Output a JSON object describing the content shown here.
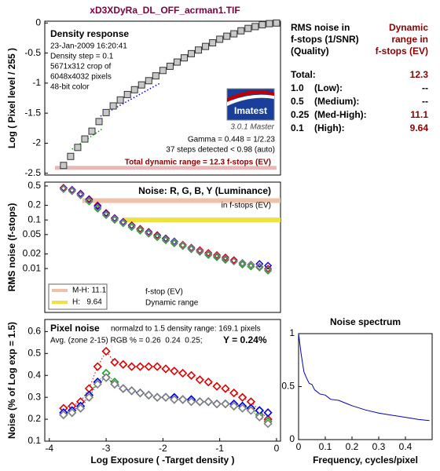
{
  "title": "xD3XDyRa_DL_OFF_acrman1.TIF",
  "table": {
    "header_left": [
      "RMS noise in",
      "f-stops (1/SNR)",
      "(Quality)"
    ],
    "header_right": [
      "Dynamic",
      "range in",
      "f-stops (EV)"
    ],
    "total": {
      "label": "Total:",
      "value": 12.3
    },
    "rows": [
      {
        "level": "1.0",
        "quality": "(Low):",
        "value": "--"
      },
      {
        "level": "0.5",
        "quality": "(Medium):",
        "value": "--"
      },
      {
        "level": "0.25",
        "quality": "(Med-High):",
        "value": 11.1
      },
      {
        "level": "0.1",
        "quality": "(High):",
        "value": 9.64
      }
    ]
  },
  "chart_data": [
    {
      "type": "scatter",
      "title": "Density response",
      "notes": [
        "23-Jan-2009 16:20:41",
        "Density step = 0.1",
        "5671x312 crop of",
        "6048x4032 pixels",
        "48-bit color"
      ],
      "notes2": [
        "Gamma = 0.448 = 1/2.23",
        "37 steps detected < 0.98 (auto)"
      ],
      "footer": "Total dynamic range = 12.3 f-stops (EV)",
      "logo": "Imatest",
      "version": "3.0.1  Master",
      "ylabel": "Log ( Pixel level / 255 )",
      "xlim": [
        -4.08,
        0.07
      ],
      "ylim": [
        -2.53,
        0.03
      ],
      "yticks": [
        0,
        -0.5,
        -1,
        -1.5,
        -2,
        -2.5
      ],
      "x": [
        -3.75,
        -3.625,
        -3.5,
        -3.375,
        -3.25,
        -3.125,
        -3.0,
        -2.875,
        -2.75,
        -2.625,
        -2.5,
        -2.375,
        -2.25,
        -2.125,
        -2.0,
        -1.875,
        -1.75,
        -1.625,
        -1.5,
        -1.375,
        -1.25,
        -1.125,
        -1.0,
        -0.875,
        -0.75,
        -0.625,
        -0.5,
        -0.375,
        -0.25,
        -0.125,
        0
      ],
      "series": [
        {
          "color": "#c8c8c8",
          "marker": "square",
          "values": [
            -2.37,
            -2.22,
            -2.07,
            -1.93,
            -1.8,
            -1.64,
            -1.49,
            -1.38,
            -1.28,
            -1.19,
            -1.11,
            -1.03,
            -0.96,
            -0.88,
            -0.79,
            -0.72,
            -0.65,
            -0.58,
            -0.51,
            -0.45,
            -0.39,
            -0.33,
            -0.27,
            -0.22,
            -0.18,
            -0.13,
            -0.09,
            -0.06,
            -0.03,
            -0.01,
            0
          ]
        }
      ],
      "fits": [
        {
          "color": "#0000ff",
          "x": [
            -3.1,
            -2.05
          ],
          "values": [
            -1.55,
            -1.0
          ]
        },
        {
          "color": "#00a000",
          "x": [
            -3.6,
            -3.05
          ],
          "values": [
            -2.1,
            -1.75
          ]
        }
      ],
      "range_bar": {
        "color": "#e8b8b8",
        "y": -2.41,
        "x": [
          -3.9,
          0
        ]
      }
    },
    {
      "type": "scatter",
      "log_y": true,
      "title": "Noise: R, G, B, Y (Luminance)",
      "subtitle": "in f-stops (EV)",
      "ylabel": "RMS noise (f-stops)",
      "notes": [
        "f-stop (EV)",
        "Dynamic range"
      ],
      "xlim": [
        -4.08,
        0.07
      ],
      "ylim": [
        0.00125,
        0.6
      ],
      "yticks": [
        0.5,
        0.2,
        0.1,
        0.05,
        0.02,
        0.01
      ],
      "x": [
        -3.75,
        -3.6,
        -3.45,
        -3.3,
        -3.15,
        -3.0,
        -2.85,
        -2.7,
        -2.55,
        -2.4,
        -2.25,
        -2.1,
        -1.95,
        -1.8,
        -1.65,
        -1.5,
        -1.35,
        -1.2,
        -1.05,
        -0.9,
        -0.75,
        -0.6,
        -0.45,
        -0.3,
        -0.15
      ],
      "series": [
        {
          "color": "#e00000",
          "values": [
            0.46,
            0.42,
            0.35,
            0.27,
            0.2,
            0.14,
            0.11,
            0.092,
            0.078,
            0.066,
            0.057,
            0.049,
            0.042,
            0.036,
            0.031,
            0.027,
            0.024,
            0.021,
            0.019,
            0.017,
            0.015,
            0.013,
            0.012,
            0.011,
            0.01
          ]
        },
        {
          "color": "#20a020",
          "values": [
            0.43,
            0.39,
            0.32,
            0.24,
            0.17,
            0.125,
            0.1,
            0.085,
            0.071,
            0.06,
            0.052,
            0.044,
            0.038,
            0.033,
            0.029,
            0.025,
            0.022,
            0.019,
            0.017,
            0.015,
            0.014,
            0.012,
            0.011,
            0.0105,
            0.009
          ]
        },
        {
          "color": "#0000e0",
          "values": [
            0.45,
            0.41,
            0.34,
            0.26,
            0.19,
            0.135,
            0.108,
            0.09,
            0.076,
            0.064,
            0.055,
            0.047,
            0.041,
            0.036,
            0.03,
            0.026,
            0.023,
            0.02,
            0.018,
            0.016,
            0.014,
            0.013,
            0.012,
            0.0125,
            0.0115
          ]
        },
        {
          "color": "#808080",
          "values": [
            0.44,
            0.4,
            0.33,
            0.25,
            0.18,
            0.13,
            0.105,
            0.088,
            0.074,
            0.063,
            0.054,
            0.046,
            0.04,
            0.035,
            0.03,
            0.026,
            0.023,
            0.02,
            0.018,
            0.016,
            0.014,
            0.013,
            0.012,
            0.011,
            0.0095
          ]
        }
      ],
      "bars": [
        {
          "name": "M-H: 11.1",
          "color": "#f0c0a8",
          "y": 0.25,
          "x": [
            -3.42,
            0.07
          ]
        },
        {
          "name": "H:   9.64",
          "color": "#f0e040",
          "y": 0.1,
          "x": [
            -2.7,
            0.07
          ]
        }
      ]
    },
    {
      "type": "scatter",
      "connect": true,
      "title": "Pixel noise",
      "subtitle": "normalzd to 1.5 density range: 169.1 pixels",
      "notes": [
        "Avg. (zone 2-15) RGB % = 0.26  0.24  0.25;"
      ],
      "highlight": "Y = 0.24%",
      "xlabel": "Log Exposure ( -Target density )",
      "ylabel": "Noise (% of Log exp = 1.5)",
      "xlim": [
        -4.08,
        0.07
      ],
      "ylim": [
        0.1,
        0.655
      ],
      "xticks": [
        -4,
        -3,
        -2,
        -1,
        0
      ],
      "yticks": [
        0.6,
        0.5,
        0.4,
        0.3,
        0.2,
        0.1
      ],
      "x": [
        -3.75,
        -3.6,
        -3.45,
        -3.3,
        -3.15,
        -3.0,
        -2.85,
        -2.7,
        -2.55,
        -2.4,
        -2.25,
        -2.1,
        -1.95,
        -1.8,
        -1.65,
        -1.5,
        -1.35,
        -1.2,
        -1.05,
        -0.9,
        -0.75,
        -0.6,
        -0.45,
        -0.3,
        -0.15
      ],
      "series": [
        {
          "color": "#e00000",
          "values": [
            0.25,
            0.26,
            0.28,
            0.34,
            0.44,
            0.51,
            0.46,
            0.45,
            0.44,
            0.44,
            0.44,
            0.44,
            0.43,
            0.42,
            0.41,
            0.4,
            0.38,
            0.37,
            0.35,
            0.34,
            0.32,
            0.3,
            0.28,
            0.24,
            0.2
          ]
        },
        {
          "color": "#20a020",
          "values": [
            0.22,
            0.23,
            0.25,
            0.3,
            0.37,
            0.41,
            0.37,
            0.34,
            0.33,
            0.32,
            0.31,
            0.3,
            0.3,
            0.29,
            0.29,
            0.29,
            0.28,
            0.28,
            0.27,
            0.27,
            0.26,
            0.26,
            0.25,
            0.22,
            0.19
          ]
        },
        {
          "color": "#0000e0",
          "values": [
            0.23,
            0.24,
            0.26,
            0.31,
            0.37,
            0.39,
            0.36,
            0.34,
            0.33,
            0.32,
            0.31,
            0.3,
            0.3,
            0.3,
            0.29,
            0.29,
            0.28,
            0.28,
            0.27,
            0.27,
            0.27,
            0.26,
            0.25,
            0.24,
            0.23
          ]
        },
        {
          "color": "#808080",
          "values": [
            0.22,
            0.23,
            0.25,
            0.3,
            0.36,
            0.39,
            0.36,
            0.34,
            0.33,
            0.32,
            0.31,
            0.3,
            0.3,
            0.29,
            0.29,
            0.28,
            0.28,
            0.28,
            0.27,
            0.27,
            0.26,
            0.25,
            0.24,
            0.21,
            0.18
          ]
        }
      ]
    },
    {
      "type": "line",
      "title": "Noise spectrum",
      "xlabel": "Frequency, cycles/pixel",
      "xlim": [
        0,
        0.5
      ],
      "ylim": [
        0,
        1
      ],
      "xticks": [
        0,
        0.1,
        0.2,
        0.3,
        0.4
      ],
      "yticks": [
        0,
        0.5,
        1
      ],
      "x": [
        0,
        0.01,
        0.02,
        0.03,
        0.04,
        0.05,
        0.06,
        0.08,
        0.1,
        0.12,
        0.15,
        0.18,
        0.2,
        0.25,
        0.3,
        0.35,
        0.4,
        0.45,
        0.49
      ],
      "series": [
        {
          "color": "#0000c0",
          "values": [
            1,
            0.8,
            0.64,
            0.58,
            0.53,
            0.52,
            0.47,
            0.43,
            0.42,
            0.38,
            0.37,
            0.34,
            0.32,
            0.28,
            0.25,
            0.23,
            0.21,
            0.19,
            0.18
          ]
        }
      ]
    }
  ]
}
